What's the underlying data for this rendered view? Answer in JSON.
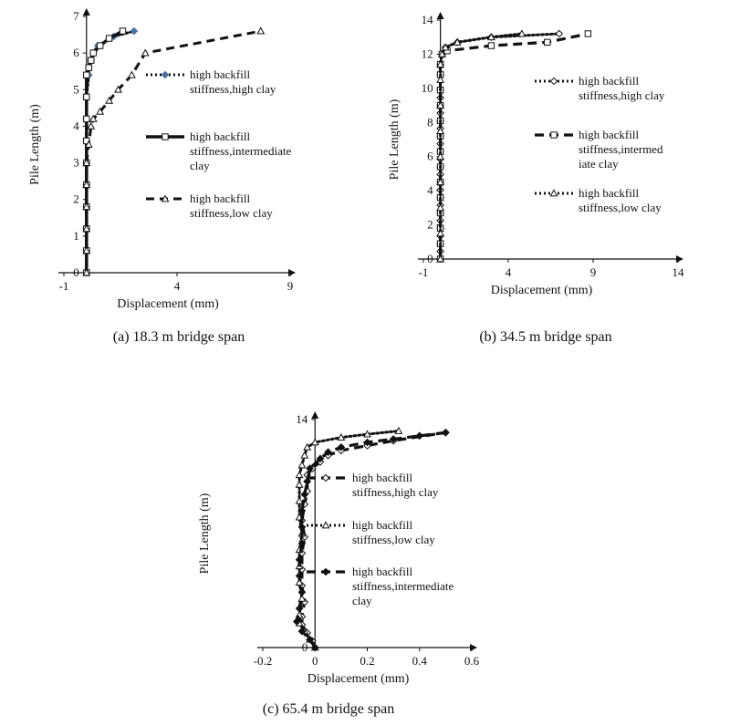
{
  "chart_data": [
    {
      "type": "line",
      "caption": "(a) 18.3 m bridge span",
      "xlabel": "Displacement (mm)",
      "ylabel": "Pile Length (m)",
      "xlim": [
        -1,
        9
      ],
      "ylim": [
        0,
        7
      ],
      "xticks": [
        -1,
        4,
        9
      ],
      "yticks": [
        0,
        1,
        2,
        3,
        4,
        5,
        6,
        7
      ],
      "legend_position": "right",
      "series": [
        {
          "name": "high backfill stiffness,high clay",
          "style": "dotted",
          "marker": "diamond-filled",
          "marker_color": "#4a6fa5",
          "x": [
            0,
            0,
            0,
            0,
            0,
            0,
            0,
            0,
            0,
            0.1,
            0.1,
            0.2,
            0.3,
            0.5,
            1.2,
            2.1
          ],
          "y": [
            0,
            0.6,
            1.2,
            1.8,
            2.4,
            3.0,
            3.6,
            4.2,
            4.8,
            5.4,
            5.6,
            5.8,
            6.0,
            6.2,
            6.45,
            6.6
          ]
        },
        {
          "name": "high backfill stiffness,intermediate clay",
          "style": "solid-thick",
          "marker": "square-open",
          "x": [
            0,
            0,
            0,
            0,
            0,
            0,
            0,
            0,
            0,
            0,
            0.1,
            0.2,
            0.3,
            0.6,
            1.0,
            1.6
          ],
          "y": [
            0,
            0.6,
            1.2,
            1.8,
            2.4,
            3.0,
            3.6,
            4.2,
            4.8,
            5.4,
            5.6,
            5.8,
            6.0,
            6.2,
            6.4,
            6.6
          ]
        },
        {
          "name": "high backfill stiffness,low clay",
          "style": "dashed",
          "marker": "triangle-open",
          "x": [
            0,
            0,
            0,
            0,
            0,
            0,
            0.1,
            0.2,
            0.3,
            0.6,
            1.0,
            1.4,
            2.0,
            2.6,
            7.7
          ],
          "y": [
            0,
            0.6,
            1.2,
            1.8,
            2.4,
            3.0,
            3.5,
            4.0,
            4.2,
            4.4,
            4.7,
            5.0,
            5.4,
            6.0,
            6.6
          ]
        }
      ]
    },
    {
      "type": "line",
      "caption": "(b) 34.5 m bridge span",
      "xlabel": "Displacement (mm)",
      "ylabel": "Pile Length (m)",
      "xlim": [
        -1,
        14
      ],
      "ylim": [
        0,
        14
      ],
      "xticks": [
        -1,
        4,
        9,
        14
      ],
      "yticks": [
        0,
        2,
        4,
        6,
        8,
        10,
        12,
        14
      ],
      "legend_position": "right",
      "series": [
        {
          "name": "high backfill stiffness,high clay",
          "style": "dotted",
          "marker": "diamond-open",
          "x": [
            0,
            0,
            0,
            0,
            0,
            0,
            0,
            0,
            0,
            0,
            0,
            0,
            0,
            0,
            0,
            0,
            0,
            0,
            0,
            0,
            0,
            0,
            0,
            0,
            0,
            0.1,
            0.3,
            1.0,
            3.0,
            7.0
          ],
          "y": [
            0,
            0.45,
            0.9,
            1.35,
            1.8,
            2.25,
            2.7,
            3.15,
            3.6,
            4.05,
            4.5,
            4.95,
            5.4,
            5.85,
            6.3,
            6.75,
            7.2,
            7.65,
            8.1,
            8.55,
            9.0,
            9.45,
            9.9,
            10.8,
            11.4,
            12.0,
            12.4,
            12.7,
            13.0,
            13.2
          ]
        },
        {
          "name": "high backfill stiffness,intermed iate clay",
          "style": "dashed-thick",
          "marker": "square-open",
          "x": [
            0,
            0,
            0,
            0,
            0,
            0,
            0,
            0,
            0,
            0,
            0,
            0,
            0,
            0,
            0.1,
            0.4,
            3.0,
            6.3,
            8.7
          ],
          "y": [
            0,
            0.9,
            1.8,
            2.7,
            3.6,
            4.5,
            5.4,
            6.3,
            7.2,
            8.1,
            9.0,
            9.9,
            10.8,
            11.4,
            12.0,
            12.2,
            12.5,
            12.7,
            13.2
          ]
        },
        {
          "name": "high backfill stiffness,low clay",
          "style": "dotted",
          "marker": "triangle-open",
          "x": [
            0,
            0,
            0,
            0,
            0,
            0,
            0,
            0,
            0,
            0.1,
            0.3,
            1.0,
            3.0,
            4.8
          ],
          "y": [
            0,
            1.5,
            3.0,
            4.5,
            6.0,
            7.5,
            9.0,
            10.5,
            11.4,
            12.0,
            12.4,
            12.7,
            13.0,
            13.2
          ]
        }
      ]
    },
    {
      "type": "line",
      "caption": "(c) 65.4 m bridge span",
      "xlabel": "Displacement (mm)",
      "ylabel": "Pile Length (m)",
      "xlim": [
        -0.2,
        0.6
      ],
      "ylim": [
        0,
        14
      ],
      "xticks": [
        -0.2,
        0,
        0.2,
        0.4,
        0.6
      ],
      "yticks": [
        0,
        14
      ],
      "legend_position": "right",
      "series": [
        {
          "name": "high backfill stiffness,high clay",
          "style": "dashed-thick",
          "marker": "diamond-open",
          "x": [
            0,
            -0.01,
            -0.03,
            -0.05,
            -0.05,
            -0.04,
            -0.05,
            -0.05,
            -0.05,
            -0.04,
            -0.05,
            -0.04,
            -0.03,
            -0.03,
            -0.03,
            -0.01,
            0.02,
            0.05,
            0.1,
            0.2,
            0.3,
            0.5
          ],
          "y": [
            0,
            0.4,
            0.9,
            1.4,
            1.9,
            2.8,
            3.8,
            4.8,
            5.8,
            6.8,
            7.8,
            8.8,
            9.6,
            10.2,
            10.6,
            11.0,
            11.4,
            11.8,
            12.1,
            12.4,
            12.7,
            13.2
          ]
        },
        {
          "name": "high backfill stiffness,low clay",
          "style": "dotted",
          "marker": "triangle-open",
          "x": [
            0,
            -0.02,
            -0.04,
            -0.06,
            -0.06,
            -0.05,
            -0.06,
            -0.06,
            -0.06,
            -0.05,
            -0.06,
            -0.06,
            -0.06,
            -0.06,
            -0.05,
            -0.04,
            -0.03,
            0.0,
            0.1,
            0.2,
            0.32
          ],
          "y": [
            0,
            0.5,
            1.0,
            1.5,
            2.0,
            3.0,
            4.0,
            5.0,
            6.0,
            7.0,
            8.0,
            9.0,
            10.0,
            10.6,
            11.2,
            11.8,
            12.3,
            12.6,
            12.9,
            13.1,
            13.3
          ]
        },
        {
          "name": "high backfill stiffness,intermediate clay",
          "style": "dashed-thick",
          "marker": "diamond-filled",
          "x": [
            0,
            -0.02,
            -0.05,
            -0.07,
            -0.06,
            -0.05,
            -0.06,
            -0.06,
            -0.05,
            -0.05,
            -0.05,
            -0.04,
            -0.03,
            -0.02,
            0.02,
            0.05,
            0.1,
            0.2,
            0.3,
            0.4,
            0.5
          ],
          "y": [
            0,
            0.5,
            1.0,
            1.6,
            2.4,
            3.4,
            4.4,
            5.4,
            6.4,
            7.4,
            8.4,
            9.4,
            10.2,
            11.0,
            11.6,
            12.0,
            12.3,
            12.6,
            12.8,
            13.0,
            13.2
          ]
        }
      ]
    }
  ]
}
